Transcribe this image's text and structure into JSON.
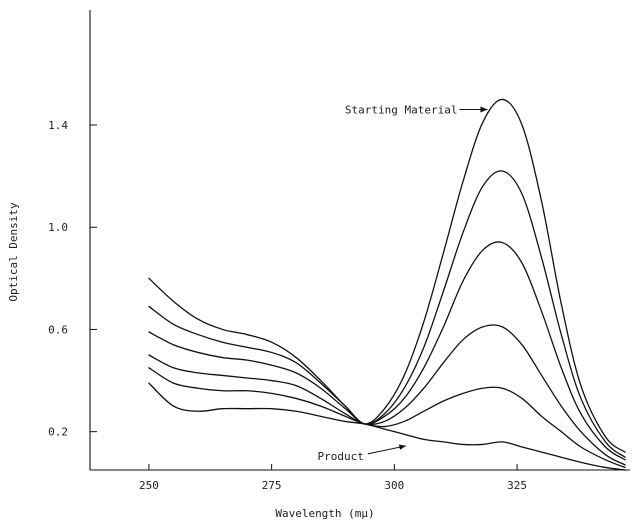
{
  "chart_data": {
    "type": "line",
    "xlabel": "Wavelength (mμ)",
    "ylabel": "Optical Density",
    "xlim": [
      238,
      348
    ],
    "ylim": [
      0.05,
      1.85
    ],
    "xticks": [
      250,
      275,
      300,
      325
    ],
    "xtick_labels": [
      "250",
      "275",
      "300",
      "325"
    ],
    "yticks": [
      0.2,
      0.6,
      1.0,
      1.4
    ],
    "ytick_labels": [
      "0.2",
      "0.6",
      "1.0",
      "1.4"
    ],
    "grid": false,
    "series": [
      {
        "x": [
          250,
          255,
          260,
          265,
          270,
          275,
          280,
          285,
          290,
          294,
          298,
          302,
          306,
          310,
          314,
          318,
          322,
          326,
          330,
          334,
          338,
          343,
          347
        ],
        "y": [
          0.8,
          0.71,
          0.64,
          0.6,
          0.58,
          0.55,
          0.49,
          0.4,
          0.3,
          0.23,
          0.29,
          0.42,
          0.63,
          0.9,
          1.18,
          1.41,
          1.5,
          1.4,
          1.1,
          0.7,
          0.38,
          0.18,
          0.12
        ]
      },
      {
        "x": [
          250,
          255,
          260,
          265,
          270,
          275,
          280,
          285,
          290,
          294,
          298,
          302,
          306,
          310,
          314,
          318,
          322,
          326,
          330,
          334,
          338,
          343,
          347
        ],
        "y": [
          0.69,
          0.62,
          0.58,
          0.55,
          0.53,
          0.51,
          0.47,
          0.39,
          0.3,
          0.23,
          0.27,
          0.37,
          0.53,
          0.75,
          0.98,
          1.16,
          1.22,
          1.13,
          0.88,
          0.58,
          0.33,
          0.16,
          0.1
        ]
      },
      {
        "x": [
          250,
          255,
          260,
          265,
          270,
          275,
          280,
          285,
          290,
          294,
          298,
          302,
          306,
          310,
          314,
          318,
          322,
          326,
          330,
          334,
          338,
          343,
          347
        ],
        "y": [
          0.59,
          0.54,
          0.51,
          0.49,
          0.48,
          0.46,
          0.43,
          0.37,
          0.29,
          0.23,
          0.26,
          0.33,
          0.45,
          0.61,
          0.79,
          0.91,
          0.94,
          0.86,
          0.67,
          0.45,
          0.27,
          0.14,
          0.09
        ]
      },
      {
        "x": [
          250,
          255,
          260,
          265,
          270,
          275,
          280,
          285,
          290,
          294,
          298,
          302,
          306,
          310,
          314,
          318,
          322,
          326,
          330,
          334,
          338,
          343,
          347
        ],
        "y": [
          0.5,
          0.45,
          0.43,
          0.42,
          0.41,
          0.4,
          0.38,
          0.33,
          0.27,
          0.23,
          0.24,
          0.29,
          0.37,
          0.47,
          0.56,
          0.61,
          0.61,
          0.54,
          0.42,
          0.3,
          0.2,
          0.11,
          0.07
        ]
      },
      {
        "x": [
          250,
          255,
          260,
          265,
          270,
          275,
          280,
          285,
          290,
          294,
          298,
          302,
          306,
          310,
          314,
          318,
          322,
          326,
          330,
          334,
          338,
          343,
          347
        ],
        "y": [
          0.45,
          0.39,
          0.37,
          0.36,
          0.36,
          0.35,
          0.33,
          0.3,
          0.26,
          0.23,
          0.22,
          0.24,
          0.28,
          0.32,
          0.35,
          0.37,
          0.37,
          0.33,
          0.26,
          0.2,
          0.14,
          0.09,
          0.06
        ]
      },
      {
        "x": [
          250,
          255,
          260,
          265,
          270,
          275,
          280,
          285,
          290,
          294,
          298,
          302,
          306,
          310,
          314,
          318,
          322,
          326,
          330,
          334,
          338,
          343,
          347
        ],
        "y": [
          0.39,
          0.3,
          0.28,
          0.29,
          0.29,
          0.29,
          0.28,
          0.26,
          0.24,
          0.23,
          0.21,
          0.19,
          0.17,
          0.16,
          0.15,
          0.15,
          0.16,
          0.14,
          0.12,
          0.1,
          0.08,
          0.06,
          0.05
        ]
      }
    ],
    "annotations": [
      {
        "text": "Starting Material",
        "x": 321,
        "y": 1.5
      },
      {
        "text": "Product",
        "x": 306,
        "y": 0.16
      }
    ]
  }
}
